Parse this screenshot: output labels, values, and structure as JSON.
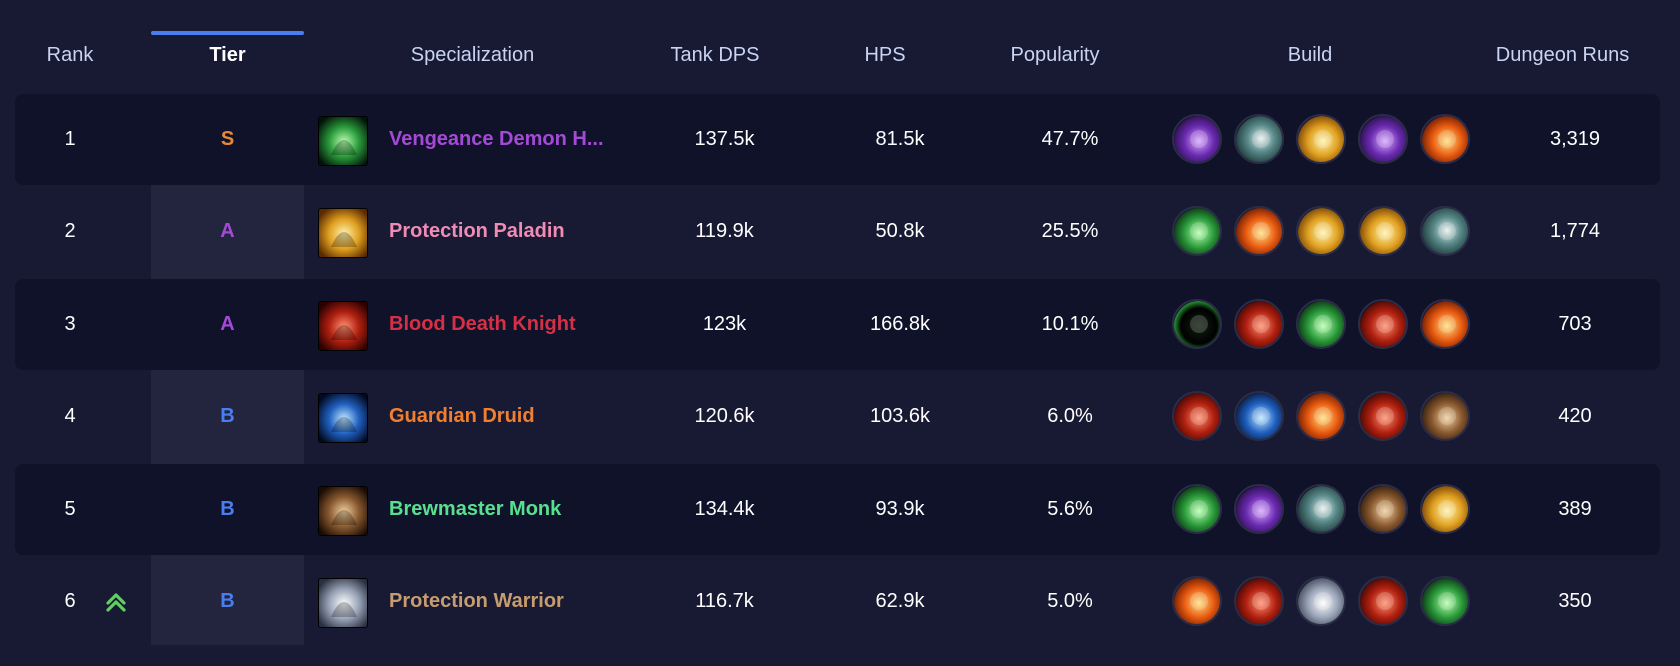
{
  "columns": {
    "rank": "Rank",
    "tier": "Tier",
    "specialization": "Specialization",
    "tank_dps": "Tank DPS",
    "hps": "HPS",
    "popularity": "Popularity",
    "build": "Build",
    "dungeon_runs": "Dungeon Runs"
  },
  "active_sort_column": "tier",
  "colors": {
    "tier_S": "#e8873a",
    "tier_A": "#a54ad6",
    "tier_B": "#4a7df0",
    "rank_up": "#5fcf5f",
    "sort_indicator": "#4a7df0"
  },
  "rows": [
    {
      "rank": "1",
      "tier": "S",
      "spec": "Vengeance Demon H...",
      "spec_color": "#a54ad6",
      "spec_icon": "demon-hunter-icon",
      "dps": "137.5k",
      "hps": "81.5k",
      "popularity": "47.7%",
      "runs": "3,319",
      "rank_change": "",
      "talents": [
        "void-orb-icon",
        "skull-icon",
        "fel-blast-icon",
        "void-orb-icon",
        "fire-fist-icon"
      ]
    },
    {
      "rank": "2",
      "tier": "A",
      "spec": "Protection Paladin",
      "spec_color": "#f08bb5",
      "spec_icon": "paladin-helm-icon",
      "dps": "119.9k",
      "hps": "50.8k",
      "popularity": "25.5%",
      "runs": "1,774",
      "rank_change": "",
      "talents": [
        "lion-face-icon",
        "holy-fire-icon",
        "divine-light-icon",
        "paladin-helm-icon",
        "rune-shield-icon"
      ]
    },
    {
      "rank": "3",
      "tier": "A",
      "spec": "Blood Death Knight",
      "spec_color": "#d63046",
      "spec_icon": "blood-skull-icon",
      "dps": "123k",
      "hps": "166.8k",
      "popularity": "10.1%",
      "runs": "703",
      "rank_change": "",
      "talents": [
        "dark-portal-icon",
        "red-skull-icon",
        "ghoul-icon",
        "blood-claw-icon",
        "crimson-armor-icon"
      ]
    },
    {
      "rank": "4",
      "tier": "B",
      "spec": "Guardian Druid",
      "spec_color": "#f08030",
      "spec_icon": "bear-paw-icon",
      "dps": "120.6k",
      "hps": "103.6k",
      "popularity": "6.0%",
      "runs": "420",
      "rank_change": "",
      "talents": [
        "claw-slash-icon",
        "moonbeam-icon",
        "bear-roar-icon",
        "bear-face-icon",
        "feral-claw-icon"
      ]
    },
    {
      "rank": "5",
      "tier": "B",
      "spec": "Brewmaster Monk",
      "spec_color": "#58e090",
      "spec_icon": "brew-keg-icon",
      "dps": "134.4k",
      "hps": "93.9k",
      "popularity": "5.6%",
      "runs": "389",
      "rank_change": "",
      "talents": [
        "jade-swirl-icon",
        "staff-strike-icon",
        "serpent-icon",
        "keg-icon",
        "tiger-palm-icon"
      ]
    },
    {
      "rank": "6",
      "tier": "B",
      "spec": "Protection Warrior",
      "spec_color": "#c79c6e",
      "spec_icon": "warrior-shield-icon",
      "dps": "116.7k",
      "hps": "62.9k",
      "popularity": "5.0%",
      "runs": "350",
      "rank_change": "up",
      "talents": [
        "shield-block-icon",
        "flame-strike-icon",
        "battle-cry-icon",
        "enraged-face-icon",
        "orc-face-icon"
      ]
    }
  ]
}
